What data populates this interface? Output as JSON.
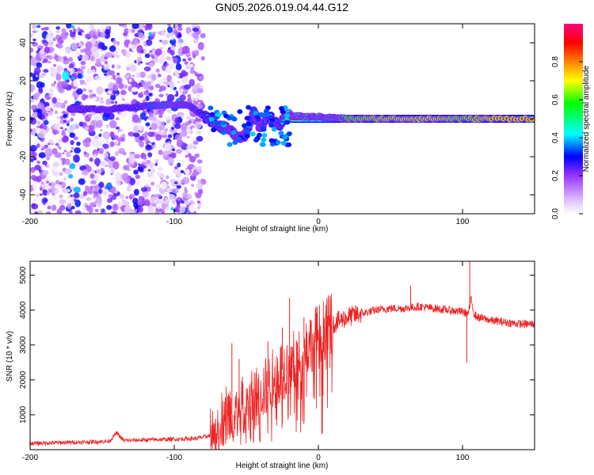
{
  "figure": {
    "title": "GN05.2026.019.04.44.G12"
  },
  "chart_data": [
    {
      "type": "heatmap",
      "name": "spectrogram",
      "xlabel": "Height of straight line (km)",
      "ylabel": "Frequency (Hz)",
      "xlim": [
        -200,
        150
      ],
      "ylim": [
        -50,
        50
      ],
      "xticks": [
        -200,
        -100,
        0,
        100
      ],
      "yticks": [
        -40,
        -20,
        0,
        20,
        40
      ],
      "colorbar": {
        "label": "Normalized spectral amplitude",
        "range": [
          0,
          1
        ],
        "ticks": [
          "0.0",
          "0.2",
          "0.4",
          "0.6",
          "0.8"
        ],
        "colormap": [
          "#ffffff",
          "#d9b8ff",
          "#9933ff",
          "#0000ff",
          "#00ffff",
          "#00ff00",
          "#ffff00",
          "#ff8000",
          "#ff0000",
          "#ff0080"
        ]
      },
      "noise_region_x": [
        -200,
        -80
      ],
      "ridge": {
        "description_points": [
          {
            "x": -172,
            "y": 5,
            "a": 0.35
          },
          {
            "x": -160,
            "y": 5,
            "a": 0.4
          },
          {
            "x": -145,
            "y": 5,
            "a": 0.35
          },
          {
            "x": -130,
            "y": 6,
            "a": 0.4
          },
          {
            "x": -115,
            "y": 7,
            "a": 0.45
          },
          {
            "x": -100,
            "y": 7.5,
            "a": 0.5
          },
          {
            "x": -90,
            "y": 7,
            "a": 0.45
          },
          {
            "x": -80,
            "y": 2,
            "a": 0.4
          },
          {
            "x": -70,
            "y": -3,
            "a": 0.35
          },
          {
            "x": -60,
            "y": -7,
            "a": 0.3
          },
          {
            "x": -52,
            "y": -10,
            "a": 0.3
          },
          {
            "x": -45,
            "y": 3,
            "a": 0.35
          },
          {
            "x": -40,
            "y": -5,
            "a": 0.3
          },
          {
            "x": -35,
            "y": 2,
            "a": 0.4
          },
          {
            "x": -28,
            "y": -4,
            "a": 0.35
          },
          {
            "x": -20,
            "y": 2,
            "a": 0.55
          },
          {
            "x": -10,
            "y": 1,
            "a": 0.65
          },
          {
            "x": 0,
            "y": 1,
            "a": 0.7
          },
          {
            "x": 10,
            "y": 0.5,
            "a": 0.75
          },
          {
            "x": 20,
            "y": 0,
            "a": 0.8
          },
          {
            "x": 40,
            "y": 0,
            "a": 0.85
          },
          {
            "x": 60,
            "y": 0,
            "a": 0.88
          },
          {
            "x": 80,
            "y": 0,
            "a": 0.88
          },
          {
            "x": 100,
            "y": 0,
            "a": 0.82
          },
          {
            "x": 120,
            "y": 0,
            "a": 0.88
          },
          {
            "x": 150,
            "y": 0,
            "a": 0.88
          }
        ]
      }
    },
    {
      "type": "line",
      "name": "snr",
      "xlabel": "Height of straight line (km)",
      "ylabel": "SNR (10 * v/v)",
      "xlim": [
        -200,
        150
      ],
      "ylim": [
        0,
        5400
      ],
      "xticks": [
        -200,
        -100,
        0,
        100
      ],
      "yticks": [
        1000,
        2000,
        3000,
        4000,
        5000
      ],
      "color": "#ee2222",
      "series": [
        {
          "name": "SNR",
          "x": [
            -200,
            -180,
            -160,
            -145,
            -140,
            -135,
            -120,
            -100,
            -85,
            -75,
            -70,
            -65,
            -60,
            -55,
            -50,
            -45,
            -40,
            -35,
            -30,
            -25,
            -20,
            -15,
            -10,
            -5,
            0,
            5,
            10,
            15,
            20,
            25,
            30,
            35,
            40,
            50,
            60,
            70,
            80,
            90,
            100,
            104,
            106,
            108,
            110,
            120,
            130,
            140,
            150
          ],
          "y": [
            180,
            200,
            220,
            240,
            480,
            260,
            280,
            300,
            320,
            400,
            600,
            1050,
            1000,
            1100,
            1350,
            1400,
            1700,
            1800,
            2100,
            2300,
            2400,
            2600,
            2900,
            3100,
            3350,
            3500,
            3600,
            3700,
            3800,
            3850,
            3900,
            3950,
            4000,
            4050,
            4050,
            4100,
            4050,
            4000,
            3950,
            3900,
            4300,
            3900,
            3800,
            3700,
            3650,
            3600,
            3600
          ]
        }
      ],
      "spikes": [
        {
          "x": -60,
          "y": 3050
        },
        {
          "x": -55,
          "y": 2600
        },
        {
          "x": -35,
          "y": 3100
        },
        {
          "x": -25,
          "y": 3500
        },
        {
          "x": -20,
          "y": 4350
        },
        {
          "x": -10,
          "y": 3800
        },
        {
          "x": 64,
          "y": 4700
        },
        {
          "x": 105,
          "y": 5400
        },
        {
          "x": 103,
          "y": 2500
        }
      ]
    }
  ]
}
